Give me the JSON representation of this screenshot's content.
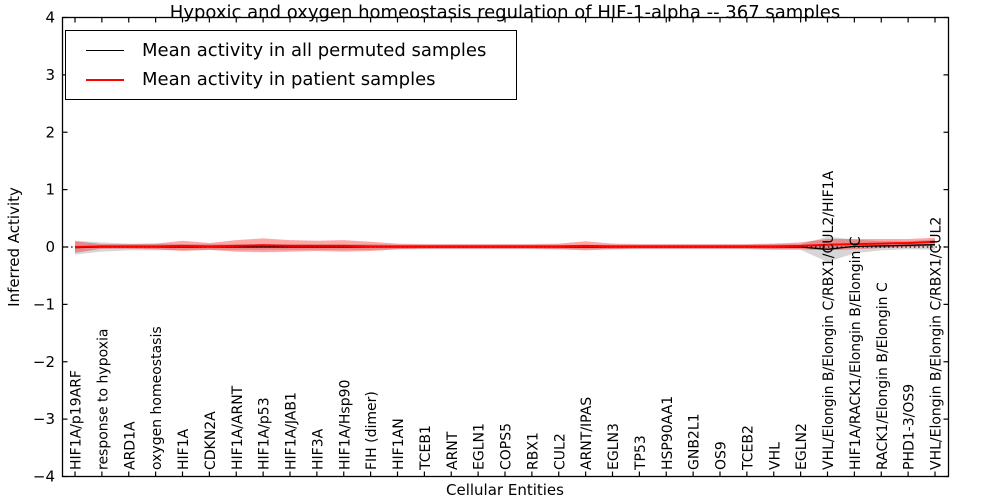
{
  "chart_data": {
    "type": "line",
    "title": "Hypoxic and oxygen homeostasis regulation of HIF-1-alpha -- 367 samples",
    "xlabel": "Cellular Entities",
    "ylabel": "Inferred Activity",
    "ylim": [
      -4,
      4
    ],
    "ytick_labels": [
      "4",
      "3",
      "2",
      "1",
      "0",
      "−1",
      "−2",
      "−3",
      "−4"
    ],
    "ytick_values": [
      4,
      3,
      2,
      1,
      0,
      -1,
      -2,
      -3,
      -4
    ],
    "grid": false,
    "legend_position": "upper-left",
    "zero_line": "dotted-black",
    "categories": [
      "HIF1A/p19ARF",
      "response to hypoxia",
      "ARD1A",
      "oxygen homeostasis",
      "HIF1A",
      "CDKN2A",
      "HIF1A/ARNT",
      "HIF1A/p53",
      "HIF1A/JAB1",
      "HIF3A",
      "HIF1A/Hsp90",
      "FIH (dimer)",
      "HIF1AN",
      "TCEB1",
      "ARNT",
      "EGLN1",
      "COPS5",
      "RBX1",
      "CUL2",
      "ARNT/IPAS",
      "EGLN3",
      "TP53",
      "HSP90AA1",
      "GNB2L1",
      "OS9",
      "TCEB2",
      "VHL",
      "EGLN2",
      "VHL/Elongin B/Elongin C/RBX1/CUL2/HIF1A",
      "HIF1A/RACK1/Elongin B/Elongin C",
      "RACK1/Elongin B/Elongin C",
      "PHD1-3/OS9",
      "VHL/Elongin B/Elongin C/RBX1/CUL2"
    ],
    "series": [
      {
        "name": "Mean activity in all permuted samples",
        "color": "#000000",
        "band_color": "#999999",
        "band_opacity": 0.4,
        "line_width": 1.3,
        "mean": [
          -0.01,
          0,
          0,
          0,
          0,
          0,
          0,
          0,
          0,
          0,
          0,
          0,
          0,
          0,
          0,
          0,
          0,
          0,
          0,
          0,
          0,
          0,
          0,
          0,
          0,
          0,
          0,
          0,
          -0.04,
          0.01,
          0.02,
          0.03,
          0.04
        ],
        "std": [
          0.12,
          0.08,
          0.06,
          0.06,
          0.05,
          0.05,
          0.05,
          0.05,
          0.05,
          0.05,
          0.05,
          0.05,
          0.04,
          0.04,
          0.04,
          0.04,
          0.04,
          0.04,
          0.04,
          0.04,
          0.04,
          0.04,
          0.04,
          0.04,
          0.04,
          0.04,
          0.05,
          0.05,
          0.22,
          0.12,
          0.08,
          0.07,
          0.09
        ]
      },
      {
        "name": "Mean activity in patient samples",
        "color": "#ff0000",
        "band_color": "#ff0000",
        "band_opacity": 0.35,
        "line_width": 2,
        "mean": [
          0,
          0.01,
          0.01,
          0.01,
          0.02,
          0.01,
          0.02,
          0.03,
          0.02,
          0.02,
          0.02,
          0.01,
          0.01,
          0.01,
          0.01,
          0.01,
          0.01,
          0.01,
          0.01,
          0.02,
          0.01,
          0.01,
          0.01,
          0.01,
          0.01,
          0.01,
          0.01,
          0.02,
          0.04,
          0.05,
          0.06,
          0.07,
          0.09
        ],
        "std": [
          0.1,
          0.04,
          0.04,
          0.05,
          0.09,
          0.06,
          0.1,
          0.12,
          0.1,
          0.09,
          0.1,
          0.08,
          0.05,
          0.04,
          0.04,
          0.04,
          0.04,
          0.04,
          0.05,
          0.08,
          0.05,
          0.04,
          0.04,
          0.04,
          0.04,
          0.04,
          0.05,
          0.06,
          0.1,
          0.09,
          0.08,
          0.07,
          0.07
        ]
      }
    ]
  }
}
